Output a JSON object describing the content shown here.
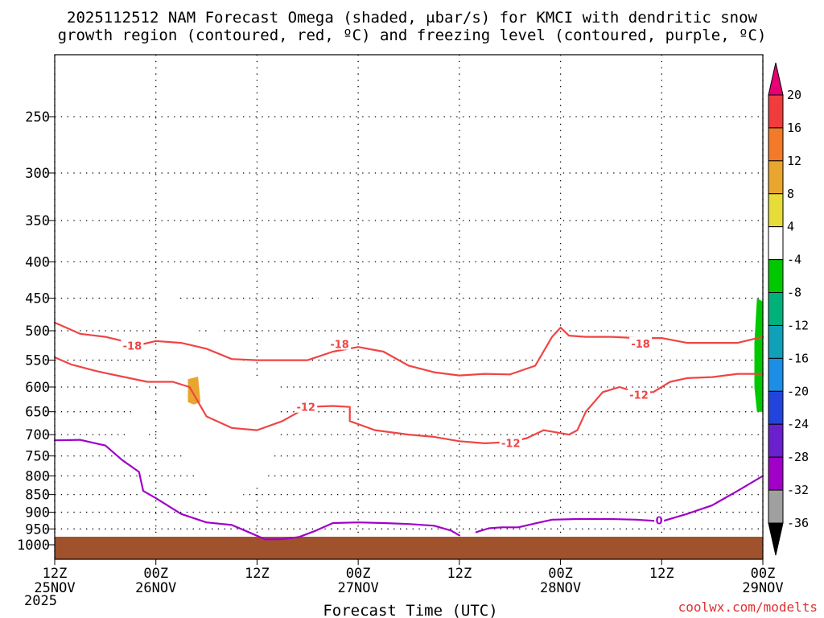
{
  "chart_data": {
    "type": "contour",
    "title_lines": [
      "2025112512 NAM Forecast Omega (shaded, μbar/s) for KMCI with dendritic snow",
      "growth region (contoured, red, ºC) and freezing level (contoured, purple, ºC)"
    ],
    "xlabel": "Forecast Time (UTC)",
    "credit": "coolwx.com/modelts",
    "year_label": "2025",
    "x_range_hours": [
      0,
      84
    ],
    "y_range_mb": [
      200,
      1050
    ],
    "x_ticks": [
      {
        "h": 0,
        "top": "12Z",
        "bottom": "25NOV"
      },
      {
        "h": 12,
        "top": "00Z",
        "bottom": "26NOV"
      },
      {
        "h": 24,
        "top": "12Z",
        "bottom": ""
      },
      {
        "h": 36,
        "top": "00Z",
        "bottom": "27NOV"
      },
      {
        "h": 48,
        "top": "12Z",
        "bottom": ""
      },
      {
        "h": 60,
        "top": "00Z",
        "bottom": "28NOV"
      },
      {
        "h": 72,
        "top": "12Z",
        "bottom": ""
      },
      {
        "h": 84,
        "top": "00Z",
        "bottom": "29NOV"
      }
    ],
    "y_ticks": [
      250,
      300,
      350,
      400,
      450,
      500,
      550,
      600,
      650,
      700,
      750,
      800,
      850,
      900,
      950,
      1000
    ],
    "colorbar": {
      "labels": [
        "20",
        "16",
        "12",
        "8",
        "4",
        "-4",
        "-8",
        "-12",
        "-16",
        "-20",
        "-24",
        "-28",
        "-32",
        "-36"
      ],
      "colors": [
        "#e60073",
        "#f03c3c",
        "#f27a28",
        "#e9a62e",
        "#e8dc38",
        "#ffffff",
        "#00c800",
        "#00b27a",
        "#10a0b8",
        "#1c8ee6",
        "#2244dd",
        "#6a20cc",
        "#a000c8",
        "#a0a0a0",
        "#000000"
      ]
    },
    "surface_color": "#a0522d",
    "dgz_color": "#f04444",
    "freezing_color": "#a000c8",
    "contour_labels": [
      {
        "text": "-18",
        "h": 9.2,
        "p": 525
      },
      {
        "text": "-18",
        "h": 33.8,
        "p": 522
      },
      {
        "text": "-18",
        "h": 69.5,
        "p": 521
      },
      {
        "text": "-12",
        "h": 29.8,
        "p": 640
      },
      {
        "text": "-12",
        "h": 54.1,
        "p": 719
      },
      {
        "text": "-12",
        "h": 69.3,
        "p": 615
      },
      {
        "text": "0",
        "h": 71.7,
        "p": 924
      }
    ],
    "dgz_lines": [
      [
        [
          0,
          487
        ],
        [
          3,
          505
        ],
        [
          6,
          510
        ],
        [
          9,
          520
        ],
        [
          10.5,
          522
        ],
        [
          12,
          517
        ],
        [
          15,
          520
        ],
        [
          18,
          530
        ],
        [
          21,
          548
        ],
        [
          24,
          550
        ],
        [
          27,
          550
        ],
        [
          30,
          550
        ],
        [
          33,
          535
        ],
        [
          36,
          527
        ],
        [
          39,
          535
        ],
        [
          42,
          560
        ],
        [
          45,
          572
        ],
        [
          48,
          578
        ],
        [
          51,
          575
        ],
        [
          54,
          576
        ],
        [
          57,
          560
        ],
        [
          59,
          510
        ],
        [
          60,
          495
        ],
        [
          61,
          508
        ],
        [
          63,
          510
        ],
        [
          66,
          510
        ],
        [
          69,
          512
        ],
        [
          72,
          512
        ],
        [
          75,
          520
        ],
        [
          78,
          520
        ],
        [
          81,
          520
        ],
        [
          84,
          510
        ]
      ],
      [
        [
          0,
          545
        ],
        [
          2,
          558
        ],
        [
          5,
          570
        ],
        [
          8,
          580
        ],
        [
          11,
          590
        ],
        [
          14,
          590
        ],
        [
          16,
          600
        ],
        [
          18,
          660
        ],
        [
          21,
          685
        ],
        [
          24,
          690
        ],
        [
          27,
          670
        ],
        [
          30,
          640
        ],
        [
          33,
          638
        ],
        [
          35,
          640
        ],
        [
          35,
          670
        ],
        [
          38,
          690
        ],
        [
          42,
          700
        ],
        [
          45,
          705
        ],
        [
          48,
          715
        ],
        [
          51,
          720
        ],
        [
          54,
          717
        ],
        [
          56,
          708
        ],
        [
          58,
          690
        ],
        [
          61,
          700
        ],
        [
          62,
          690
        ],
        [
          63,
          650
        ],
        [
          65,
          610
        ],
        [
          67,
          600
        ],
        [
          69,
          610
        ],
        [
          71,
          610
        ],
        [
          73,
          590
        ],
        [
          75,
          583
        ],
        [
          78,
          581
        ],
        [
          81,
          575
        ],
        [
          84,
          575
        ]
      ]
    ],
    "freezing_lines": [
      [
        [
          0,
          713
        ],
        [
          3,
          712
        ],
        [
          6,
          725
        ],
        [
          8,
          760
        ],
        [
          10,
          790
        ],
        [
          10.5,
          840
        ],
        [
          12,
          860
        ],
        [
          15,
          905
        ],
        [
          18,
          930
        ],
        [
          21,
          938
        ],
        [
          23,
          960
        ],
        [
          25,
          983
        ],
        [
          27,
          982
        ],
        [
          29,
          975
        ],
        [
          31,
          955
        ],
        [
          33,
          932
        ],
        [
          36,
          930
        ],
        [
          39,
          932
        ],
        [
          42,
          935
        ],
        [
          45,
          940
        ],
        [
          47,
          955
        ],
        [
          48,
          970
        ]
      ],
      [
        [
          50,
          960
        ],
        [
          51.5,
          948
        ],
        [
          53,
          945
        ],
        [
          55,
          945
        ],
        [
          57,
          933
        ],
        [
          59,
          922
        ],
        [
          62,
          920
        ],
        [
          66,
          920
        ],
        [
          69,
          922
        ],
        [
          72,
          927
        ],
        [
          75,
          905
        ],
        [
          78,
          880
        ],
        [
          81,
          840
        ],
        [
          84,
          800
        ]
      ]
    ],
    "omega_regions": [
      {
        "level": 4,
        "pts": [
          [
            12.5,
            410
          ],
          [
            13.5,
            420
          ],
          [
            15,
            470
          ],
          [
            17,
            500
          ],
          [
            18,
            505
          ],
          [
            18.7,
            465
          ],
          [
            19.3,
            470
          ],
          [
            19.6,
            520
          ],
          [
            22,
            545
          ],
          [
            24,
            580
          ],
          [
            26.5,
            590
          ],
          [
            26.8,
            650
          ],
          [
            26,
            750
          ],
          [
            25,
            800
          ],
          [
            23,
            840
          ],
          [
            21,
            870
          ],
          [
            19,
            860
          ],
          [
            17.5,
            830
          ],
          [
            17,
            800
          ],
          [
            16.5,
            780
          ],
          [
            15.5,
            750
          ],
          [
            13.8,
            735
          ],
          [
            12.9,
            725
          ],
          [
            12.4,
            700
          ],
          [
            12.2,
            600
          ],
          [
            12.5,
            520
          ]
        ]
      },
      {
        "level": 4,
        "pts": [
          [
            10.5,
            580
          ],
          [
            11.2,
            600
          ],
          [
            11.3,
            650
          ],
          [
            11,
            700
          ],
          [
            10,
            730
          ],
          [
            8.8,
            740
          ],
          [
            8.7,
            700
          ],
          [
            8.9,
            660
          ],
          [
            9.6,
            630
          ]
        ]
      },
      {
        "level": 4,
        "pts": [
          [
            10,
            765
          ],
          [
            11,
            765
          ],
          [
            11.2,
            810
          ],
          [
            11,
            860
          ],
          [
            10.4,
            855
          ],
          [
            10.2,
            810
          ],
          [
            10,
            785
          ]
        ]
      },
      {
        "level": 4,
        "pts": [
          [
            31.8,
            410
          ],
          [
            32.4,
            430
          ],
          [
            32.7,
            460
          ],
          [
            32.6,
            490
          ],
          [
            31.4,
            490
          ],
          [
            31.3,
            450
          ],
          [
            31.5,
            430
          ]
        ]
      },
      {
        "level": 12,
        "pts": [
          [
            15.8,
            585
          ],
          [
            17,
            580
          ],
          [
            17.3,
            630
          ],
          [
            16.5,
            635
          ],
          [
            15.8,
            630
          ]
        ]
      },
      {
        "level": -4,
        "pts": [
          [
            83.3,
            450
          ],
          [
            84,
            455
          ],
          [
            84,
            650
          ],
          [
            83.3,
            650
          ],
          [
            83,
            600
          ],
          [
            83,
            520
          ]
        ]
      }
    ]
  }
}
